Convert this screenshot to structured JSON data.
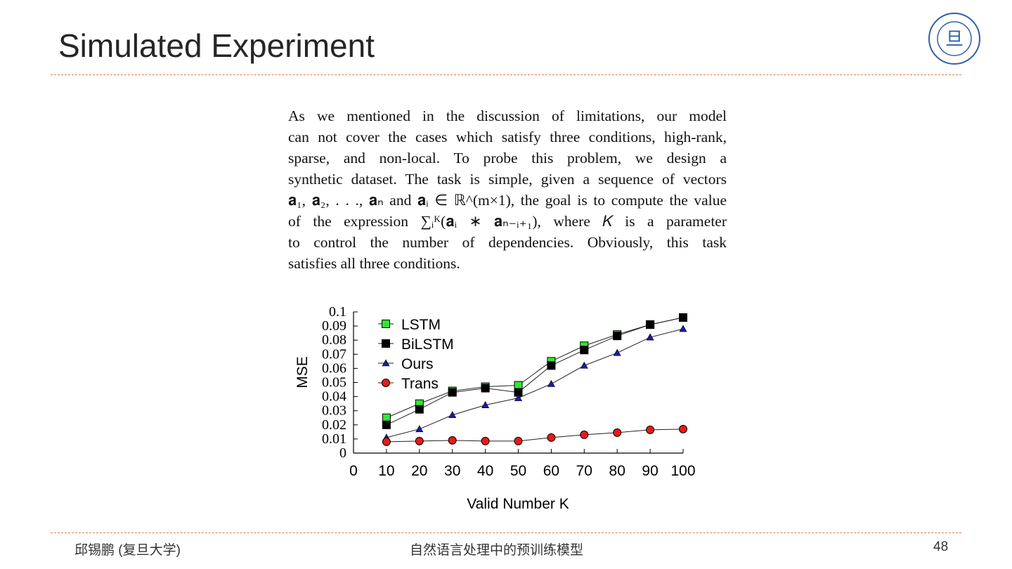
{
  "slide": {
    "title": "Simulated Experiment",
    "page": "48",
    "author": "邱锡鹏 (复旦大学)",
    "course": "自然语言处理中的预训练模型",
    "logo_text": "FUDAN UNIVERSITY 1905"
  },
  "paragraph": [
    "As we mentioned in the discussion of limitations, our model",
    "can not cover the cases which satisfy three conditions, high-rank,",
    "sparse, and non-local. To probe this problem, we design a",
    "synthetic dataset. The task is simple, given a sequence of vectors",
    "𝐚₁, 𝐚₂, . . ., 𝐚ₙ and 𝐚ᵢ ∈ ℝ^(m×1), the goal is to compute the value",
    "of the expression ∑ᵢᴷ(𝐚ᵢ ∗ 𝐚ₙ₋ᵢ₊₁), where 𝐾 is a parameter",
    "to control the number of dependencies. Obviously, this task",
    "satisfies all three conditions."
  ],
  "chart_data": {
    "type": "line",
    "xlabel": "Valid Number K",
    "ylabel": "MSE",
    "xlim": [
      0,
      100
    ],
    "ylim": [
      0,
      0.1
    ],
    "xticks": [
      "0",
      "10",
      "20",
      "30",
      "40",
      "50",
      "60",
      "70",
      "80",
      "90",
      "100"
    ],
    "yticks": [
      "0",
      "0.01",
      "0.02",
      "0.03",
      "0.04",
      "0.05",
      "0.06",
      "0.07",
      "0.08",
      "0.09",
      "0.1"
    ],
    "legend": "top-left",
    "x": [
      10,
      20,
      30,
      40,
      50,
      60,
      70,
      80,
      90,
      100
    ],
    "series": [
      {
        "name": "LSTM",
        "marker": "square",
        "color": "#33e633",
        "values": [
          0.025,
          0.035,
          0.044,
          0.047,
          0.048,
          0.065,
          0.076,
          0.084,
          0.091,
          0.096
        ]
      },
      {
        "name": "BiLSTM",
        "marker": "square",
        "color": "#000000",
        "values": [
          0.02,
          0.031,
          0.043,
          0.046,
          0.043,
          0.062,
          0.073,
          0.083,
          0.091,
          0.096
        ]
      },
      {
        "name": "Ours",
        "marker": "triangle",
        "color": "#1a1aa6",
        "values": [
          0.011,
          0.017,
          0.027,
          0.034,
          0.039,
          0.049,
          0.062,
          0.071,
          0.082,
          0.088
        ]
      },
      {
        "name": "Trans",
        "marker": "circle",
        "color": "#e61a1a",
        "values": [
          0.008,
          0.0085,
          0.009,
          0.0085,
          0.0085,
          0.011,
          0.013,
          0.0145,
          0.0165,
          0.017
        ]
      }
    ]
  }
}
